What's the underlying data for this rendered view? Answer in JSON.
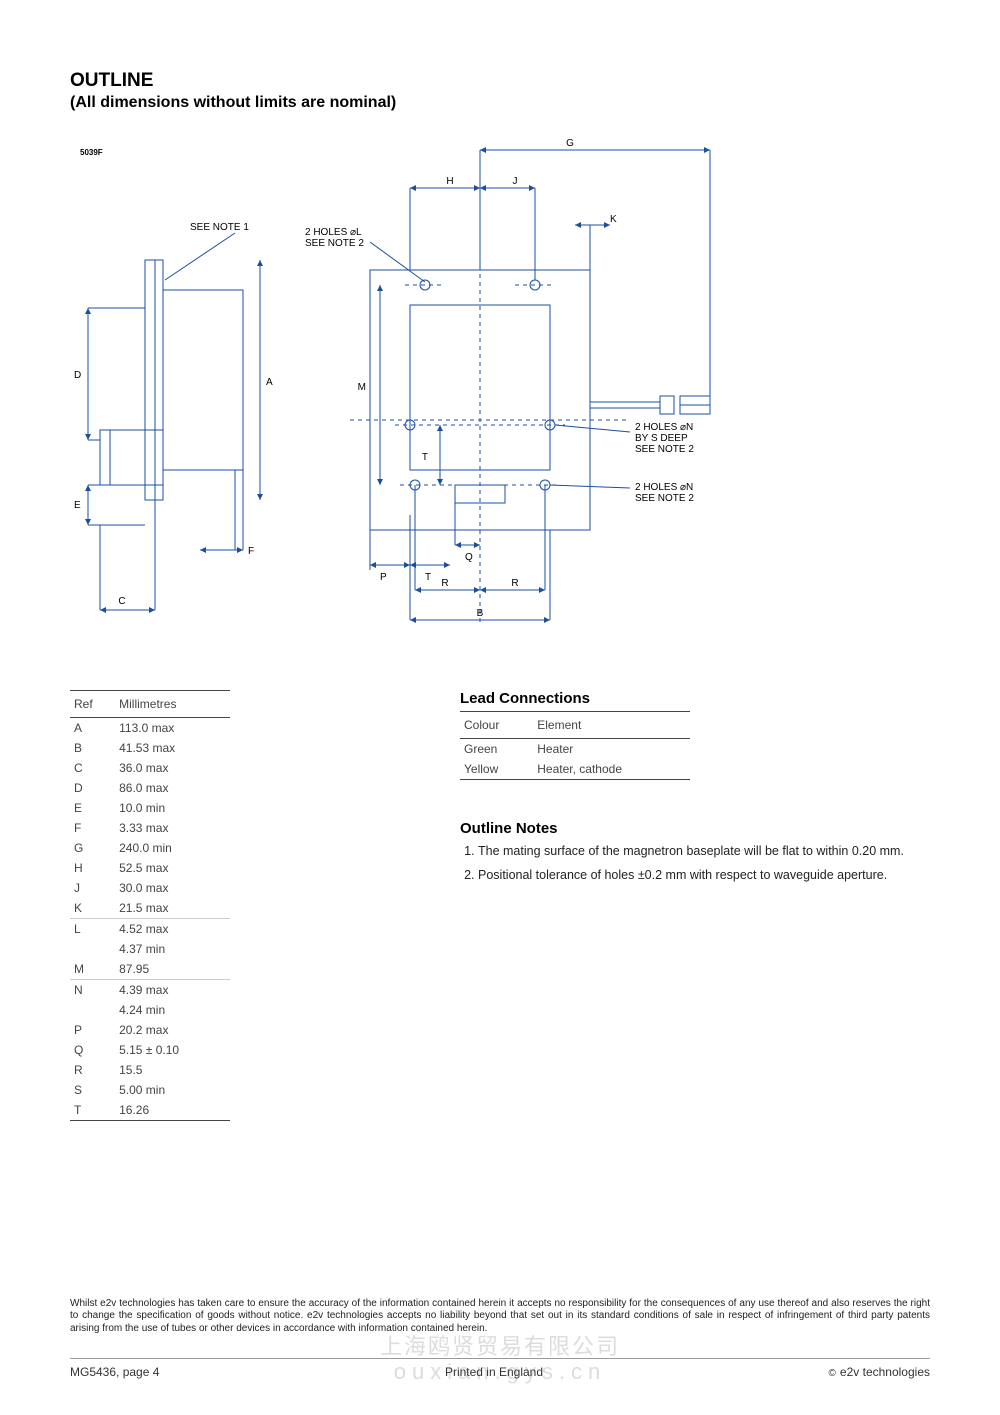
{
  "header": {
    "title": "OUTLINE",
    "subtitle": "(All dimensions without limits are nominal)"
  },
  "diagram": {
    "drawing_id": "5039F",
    "stroke_color": "#1a4fa0",
    "text_color": "#000000",
    "labels": {
      "see_note_1": "SEE NOTE 1",
      "holes_L": "2 HOLES ⌀L\nSEE NOTE 2",
      "holes_N_deep": "2 HOLES ⌀N\nBY S DEEP\nSEE NOTE 2",
      "holes_N": "2 HOLES ⌀N\nSEE NOTE 2",
      "A": "A",
      "B": "B",
      "C": "C",
      "D": "D",
      "E": "E",
      "F": "F",
      "G": "G",
      "H": "H",
      "J": "J",
      "K": "K",
      "M": "M",
      "P": "P",
      "Q": "Q",
      "R": "R",
      "T": "T"
    }
  },
  "dim_table": {
    "columns": [
      "Ref",
      "Millimetres"
    ],
    "rows": [
      {
        "ref": "A",
        "val": "113.0 max"
      },
      {
        "ref": "B",
        "val": "41.53 max"
      },
      {
        "ref": "C",
        "val": "36.0 max"
      },
      {
        "ref": "D",
        "val": "86.0 max"
      },
      {
        "ref": "E",
        "val": "10.0 min"
      },
      {
        "ref": "F",
        "val": "3.33 max"
      },
      {
        "ref": "G",
        "val": "240.0 min"
      },
      {
        "ref": "H",
        "val": "52.5 max"
      },
      {
        "ref": "J",
        "val": "30.0 max"
      },
      {
        "ref": "K",
        "val": "21.5 max"
      },
      {
        "ref": "L",
        "val": "4.52 max",
        "multi_top": true
      },
      {
        "ref": "",
        "val": "4.37 min",
        "multi_bot": true
      },
      {
        "ref": "M",
        "val": "87.95"
      },
      {
        "ref": "N",
        "val": "4.39 max",
        "multi_top": true
      },
      {
        "ref": "",
        "val": "4.24 min",
        "multi_bot": true
      },
      {
        "ref": "P",
        "val": "20.2 max"
      },
      {
        "ref": "Q",
        "val": "5.15 ± 0.10"
      },
      {
        "ref": "R",
        "val": "15.5"
      },
      {
        "ref": "S",
        "val": "5.00 min"
      },
      {
        "ref": "T",
        "val": "16.26"
      }
    ]
  },
  "lead_connections": {
    "heading": "Lead Connections",
    "columns": [
      "Colour",
      "Element"
    ],
    "rows": [
      {
        "colour": "Green",
        "element": "Heater"
      },
      {
        "colour": "Yellow",
        "element": "Heater, cathode"
      }
    ]
  },
  "outline_notes": {
    "heading": "Outline Notes",
    "items": [
      "The mating surface of the magnetron baseplate will be flat to within 0.20 mm.",
      "Positional tolerance of holes ±0.2 mm with respect to waveguide aperture."
    ]
  },
  "footer": {
    "disclaimer": "Whilst e2v technologies has taken care to ensure the accuracy of the information contained herein it accepts no responsibility for the consequences of any use thereof and also reserves the right to change the specification of goods without notice. e2v technologies accepts no liability beyond that set out in its standard conditions of sale in respect of infringement of third party patents arising from the use of tubes or other devices in accordance with information contained herein.",
    "left": "MG5436, page 4",
    "center": "Printed in England",
    "right": "e2v technologies",
    "watermark_line1": "上海鸥贤贸易有限公司",
    "watermark_line2": "ouxian.gys.cn"
  }
}
